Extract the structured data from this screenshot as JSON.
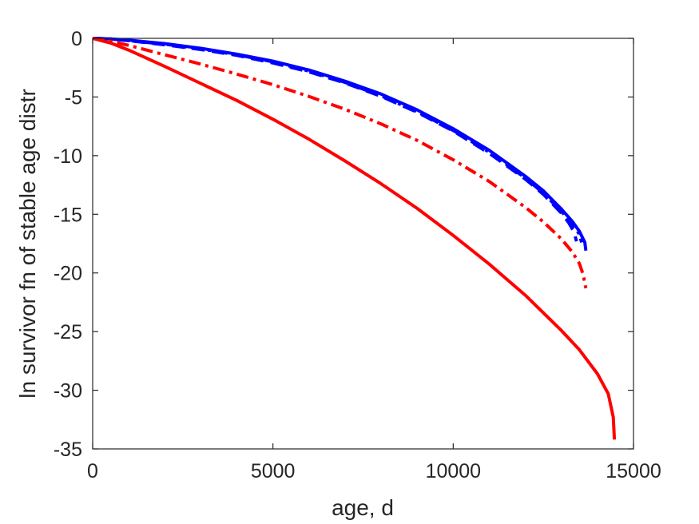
{
  "chart_data": {
    "type": "line",
    "xlabel": "age, d",
    "ylabel": "ln survivor fn of stable age distr",
    "xlim": [
      0,
      15000
    ],
    "ylim": [
      -35,
      0
    ],
    "x_ticks": [
      0,
      5000,
      10000,
      15000
    ],
    "y_ticks": [
      0,
      -5,
      -10,
      -15,
      -20,
      -25,
      -30,
      -35
    ],
    "x_tick_labels": [
      "0",
      "5000",
      "10000",
      "15000"
    ],
    "y_tick_labels": [
      "0",
      "-5",
      "-10",
      "-15",
      "-20",
      "-25",
      "-30",
      "-35"
    ],
    "grid": false,
    "box": true,
    "series": [
      {
        "color": "#0000ff",
        "style": "solid",
        "x": [
          0,
          500,
          1000,
          2000,
          3000,
          4000,
          5000,
          6000,
          7000,
          8000,
          9000,
          10000,
          11000,
          12000,
          12500,
          13000,
          13300,
          13500,
          13650,
          13680
        ],
        "y": [
          0,
          -0.05,
          -0.15,
          -0.45,
          -0.85,
          -1.35,
          -1.95,
          -2.7,
          -3.65,
          -4.75,
          -6.1,
          -7.7,
          -9.55,
          -11.75,
          -13.0,
          -14.55,
          -15.6,
          -16.45,
          -17.4,
          -18.1
        ]
      },
      {
        "color": "#0000ff",
        "style": "dashed",
        "x": [
          0,
          500,
          1000,
          2000,
          3000,
          4000,
          5000,
          6000,
          7000,
          8000,
          9000,
          10000,
          11000,
          12000,
          12500,
          13000,
          13200,
          13350,
          13420
        ],
        "y": [
          0,
          -0.05,
          -0.2,
          -0.55,
          -0.95,
          -1.45,
          -2.1,
          -2.85,
          -3.8,
          -4.95,
          -6.3,
          -7.9,
          -9.8,
          -12.0,
          -13.3,
          -14.9,
          -15.7,
          -16.5,
          -17.3
        ]
      },
      {
        "color": "#0000ff",
        "style": "dashdot",
        "x": [
          0,
          500,
          1000,
          2000,
          3000,
          4000,
          5000,
          6000,
          7000,
          8000,
          9000,
          10000,
          11000,
          12000,
          12500,
          13000,
          13300,
          13500,
          13560
        ],
        "y": [
          0,
          -0.05,
          -0.2,
          -0.5,
          -0.9,
          -1.4,
          -2.0,
          -2.8,
          -3.75,
          -4.9,
          -6.25,
          -7.85,
          -9.7,
          -11.9,
          -13.2,
          -14.75,
          -15.8,
          -16.7,
          -17.4
        ]
      },
      {
        "color": "#ff0000",
        "style": "solid",
        "x": [
          0,
          500,
          1000,
          2000,
          3000,
          4000,
          5000,
          6000,
          7000,
          8000,
          9000,
          10000,
          11000,
          12000,
          13000,
          13500,
          14000,
          14300,
          14440,
          14470
        ],
        "y": [
          0,
          -0.4,
          -1.0,
          -2.4,
          -3.85,
          -5.3,
          -6.9,
          -8.6,
          -10.45,
          -12.4,
          -14.5,
          -16.8,
          -19.25,
          -21.9,
          -24.9,
          -26.55,
          -28.6,
          -30.3,
          -32.3,
          -34.2
        ]
      },
      {
        "color": "#ff0000",
        "style": "dashdot",
        "x": [
          0,
          500,
          1000,
          2000,
          3000,
          4000,
          5000,
          6000,
          7000,
          8000,
          9000,
          10000,
          11000,
          12000,
          12500,
          13000,
          13300,
          13500,
          13600,
          13680
        ],
        "y": [
          0,
          -0.25,
          -0.6,
          -1.4,
          -2.2,
          -3.05,
          -3.95,
          -4.95,
          -6.05,
          -7.3,
          -8.7,
          -10.35,
          -12.2,
          -14.4,
          -15.65,
          -17.1,
          -18.2,
          -19.2,
          -20.1,
          -21.3
        ]
      }
    ]
  }
}
